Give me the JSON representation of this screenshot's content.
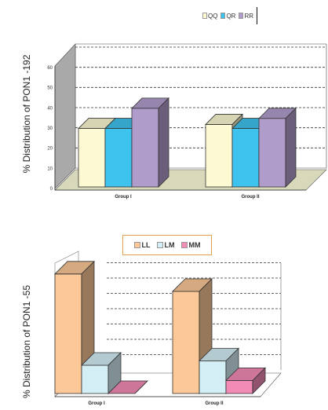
{
  "chart_data": [
    {
      "type": "bar",
      "ylabel": "% Distribution of PON1 -192",
      "categories": [
        "Group I",
        "Group II"
      ],
      "ytick_labels": [
        "0",
        "10",
        "20",
        "30",
        "40",
        "50",
        "60"
      ],
      "ylim": [
        0,
        60
      ],
      "grid": true,
      "legend_position": "top",
      "series": [
        {
          "name": "QQ",
          "values": [
            29,
            31
          ],
          "color": "#fdf9d3"
        },
        {
          "name": "QR",
          "values": [
            29,
            29
          ],
          "color": "#3ec2ee"
        },
        {
          "name": "RR",
          "values": [
            39,
            34
          ],
          "color": "#b09ccb"
        }
      ]
    },
    {
      "type": "bar",
      "ylabel": "% Distribution of PON1 -55",
      "categories": [
        "Group I",
        "Group II"
      ],
      "ylim": [
        0,
        60
      ],
      "grid": true,
      "legend_position": "top",
      "series": [
        {
          "name": "LL",
          "values": [
            55,
            47
          ],
          "color": "#fcc897"
        },
        {
          "name": "LM",
          "values": [
            13,
            15
          ],
          "color": "#d3eef5"
        },
        {
          "name": "MM",
          "values": [
            0,
            6
          ],
          "color": "#f28bb5"
        }
      ]
    }
  ]
}
